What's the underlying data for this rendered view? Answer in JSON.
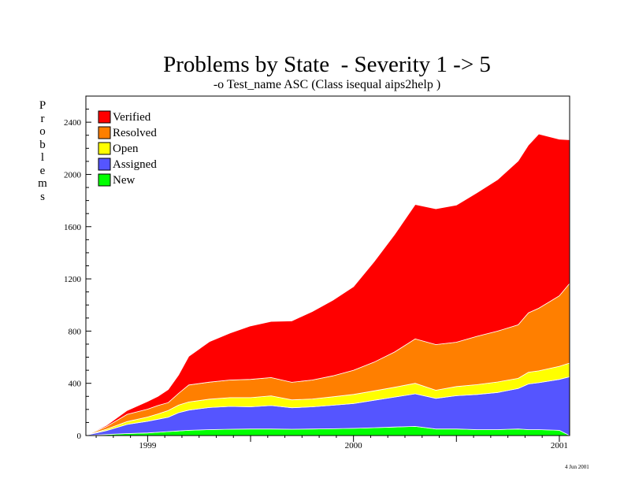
{
  "chart_data": {
    "type": "area",
    "stacked": true,
    "title": "Problems by State  - Severity 1 -> 5",
    "subtitle": "-o Test_name ASC (Class isequal aips2help )",
    "ylabel": "Problems",
    "xlabel": "",
    "ylim": [
      0,
      2600
    ],
    "y_ticks": [
      0,
      400,
      800,
      1200,
      1600,
      2000,
      2400
    ],
    "xlim": [
      1998.7,
      2001.05
    ],
    "x_ticks": [
      {
        "value": 1999.0,
        "label": "1999"
      },
      {
        "value": 1999.5,
        "label": ""
      },
      {
        "value": 2000.0,
        "label": "2000"
      },
      {
        "value": 2000.5,
        "label": ""
      },
      {
        "value": 2001.0,
        "label": "2001"
      }
    ],
    "grid": false,
    "legend_position": "top-left",
    "x": [
      1998.7,
      1998.8,
      1998.9,
      1999.0,
      1999.05,
      1999.1,
      1999.15,
      1999.2,
      1999.3,
      1999.4,
      1999.5,
      1999.6,
      1999.7,
      1999.8,
      1999.9,
      2000.0,
      2000.1,
      2000.2,
      2000.3,
      2000.4,
      2000.5,
      2000.6,
      2000.7,
      2000.8,
      2000.85,
      2000.9,
      2001.0,
      2001.05
    ],
    "series": [
      {
        "name": "New",
        "color": "#00ff00",
        "values": [
          0,
          8,
          15,
          20,
          25,
          30,
          35,
          40,
          45,
          48,
          50,
          50,
          48,
          50,
          52,
          55,
          60,
          65,
          70,
          50,
          50,
          45,
          45,
          50,
          45,
          45,
          40,
          0
        ]
      },
      {
        "name": "Assigned",
        "color": "#5555ff",
        "values": [
          2,
          30,
          70,
          90,
          100,
          110,
          140,
          155,
          170,
          175,
          170,
          180,
          165,
          170,
          180,
          190,
          210,
          230,
          250,
          235,
          255,
          270,
          285,
          310,
          350,
          360,
          390,
          450
        ]
      },
      {
        "name": "Open",
        "color": "#ffff00",
        "values": [
          0,
          10,
          22,
          32,
          40,
          52,
          58,
          62,
          64,
          67,
          70,
          74,
          60,
          60,
          65,
          70,
          72,
          75,
          80,
          62,
          70,
          75,
          80,
          78,
          90,
          90,
          100,
          105
        ]
      },
      {
        "name": "Resolved",
        "color": "#ff7f00",
        "values": [
          0,
          20,
          55,
          60,
          65,
          60,
          90,
          130,
          130,
          135,
          140,
          140,
          135,
          145,
          160,
          185,
          220,
          270,
          340,
          350,
          340,
          370,
          390,
          410,
          455,
          480,
          540,
          610
        ]
      },
      {
        "name": "Verified",
        "color": "#ff0000",
        "values": [
          0,
          10,
          30,
          60,
          70,
          100,
          140,
          220,
          310,
          360,
          410,
          430,
          470,
          525,
          580,
          640,
          770,
          900,
          1030,
          1040,
          1050,
          1100,
          1160,
          1255,
          1285,
          1335,
          1200,
          1100
        ]
      }
    ],
    "legend": [
      {
        "label": "Verified",
        "color": "#ff0000"
      },
      {
        "label": "Resolved",
        "color": "#ff7f00"
      },
      {
        "label": "Open",
        "color": "#ffff00"
      },
      {
        "label": "Assigned",
        "color": "#5555ff"
      },
      {
        "label": "New",
        "color": "#00ff00"
      }
    ]
  },
  "datestamp": "4 Jun 2001"
}
